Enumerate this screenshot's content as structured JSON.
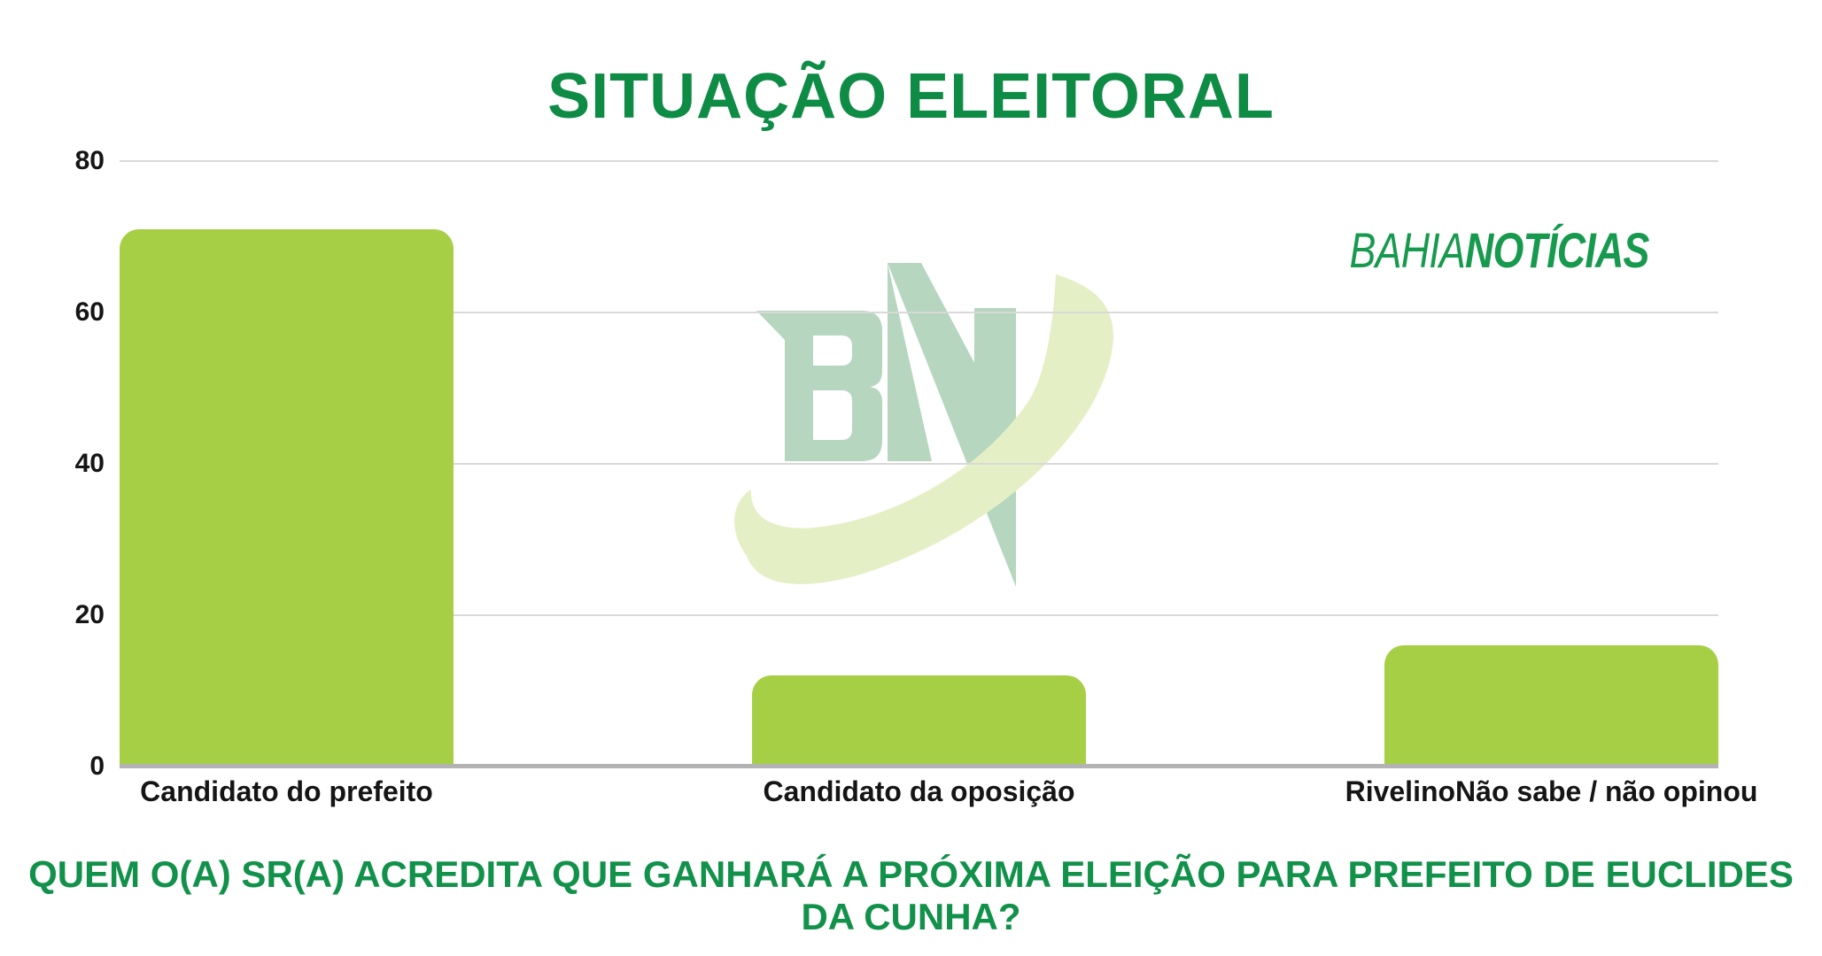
{
  "title": "SITUAÇÃO ELEITORAL",
  "question": "QUEM O(A) SR(A) ACREDITA QUE GANHARÁ A PRÓXIMA ELEIÇÃO PARA PREFEITO DE EUCLIDES DA CUNHA?",
  "logo": {
    "light": "BAHIA",
    "bold": "NOTÍCIAS",
    "watermark": "BN"
  },
  "colors": {
    "background": "#ffffff",
    "bar": "#a7cf46",
    "title_green": "#0e8b45",
    "question_green": "#11914a",
    "logo_green": "#179a4e",
    "watermark_letters": "#b6d6bf",
    "watermark_swoosh": "#e5efc5",
    "gridline": "#d9d9d9",
    "axis_line": "#b3b3b3",
    "label_black": "#151515"
  },
  "chart_data": {
    "type": "bar",
    "categories": [
      "Candidato do prefeito",
      "Candidato da oposição",
      "RivelinoNão sabe / não opinou"
    ],
    "values": [
      71,
      12,
      16
    ],
    "title": "SITUAÇÃO ELEITORAL",
    "xlabel": "",
    "ylabel": "",
    "ylim": [
      0,
      80
    ],
    "yticks": [
      0,
      20,
      40,
      60,
      80
    ],
    "grid": true,
    "legend": false,
    "bar_color": "#a7cf46"
  }
}
